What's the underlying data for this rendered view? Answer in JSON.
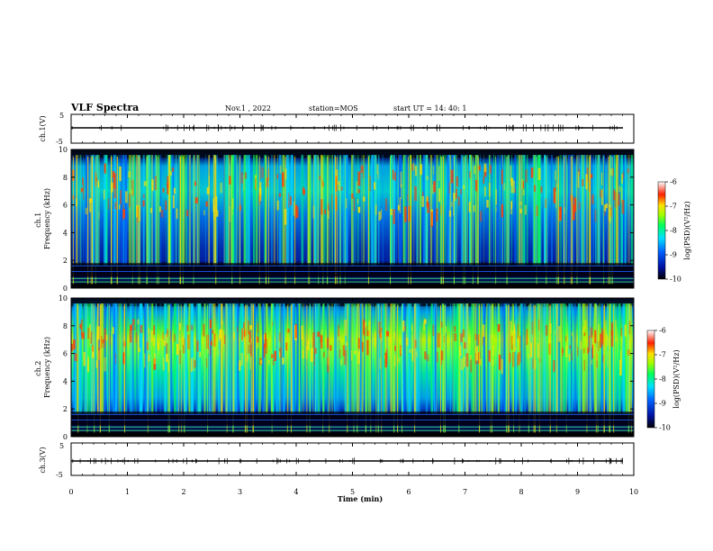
{
  "header": {
    "title": "VLF Spectra",
    "date": "Nov.1 , 2022",
    "station": "station=MOS",
    "start": "start UT = 14: 40: 1"
  },
  "colors": {
    "spectrogram_bg": "#0a1a6e",
    "low_band": "#000000",
    "colormap": [
      "#000000",
      "#0010a0",
      "#0060ff",
      "#00e0ff",
      "#00ff60",
      "#a0ff00",
      "#ffe000",
      "#ff4000",
      "#ffffff"
    ]
  },
  "chart_data": [
    {
      "type": "line",
      "name": "waveform-ch1",
      "ylabel": "ch.1(V)",
      "ylim": [
        -5,
        5
      ],
      "yticks": [
        "5",
        "-5"
      ],
      "x": [
        0,
        10
      ],
      "values": [
        0.2,
        0.2
      ],
      "xlim": [
        0,
        10
      ]
    },
    {
      "type": "heatmap",
      "name": "spectrogram-ch1",
      "ylabel": "ch.1 Frequency (kHz)",
      "ylim": [
        0,
        10
      ],
      "yticks": [
        "0",
        "2",
        "4",
        "6",
        "8",
        "10"
      ],
      "xlim": [
        0,
        10
      ],
      "colorbar": {
        "label": "log(PSD)(V²/Hz)",
        "range": [
          -10,
          -6
        ],
        "ticks": [
          "-6",
          "-7",
          "-8",
          "-9",
          "-10"
        ]
      }
    },
    {
      "type": "heatmap",
      "name": "spectrogram-ch2",
      "ylabel": "ch.2 Frequency (kHz)",
      "ylim": [
        0,
        10
      ],
      "yticks": [
        "0",
        "2",
        "4",
        "6",
        "8",
        "10"
      ],
      "xlim": [
        0,
        10
      ],
      "colorbar": {
        "label": "log(PSD)(V²/Hz)",
        "range": [
          -10,
          -6
        ],
        "ticks": [
          "-6",
          "-7",
          "-8",
          "-9",
          "-10"
        ]
      }
    },
    {
      "type": "line",
      "name": "waveform-ch3",
      "ylabel": "ch.3(V)",
      "ylim": [
        -5,
        5
      ],
      "yticks": [
        "5",
        "-5"
      ],
      "x": [
        0,
        10
      ],
      "values": [
        -0.3,
        -0.3
      ],
      "xlim": [
        0,
        10
      ]
    }
  ],
  "xaxis": {
    "label": "Time (min)",
    "ticks": [
      "0",
      "1",
      "2",
      "3",
      "4",
      "5",
      "6",
      "7",
      "8",
      "9",
      "10"
    ]
  },
  "colorbar_label": "log(PSD)(V²/Hz)"
}
